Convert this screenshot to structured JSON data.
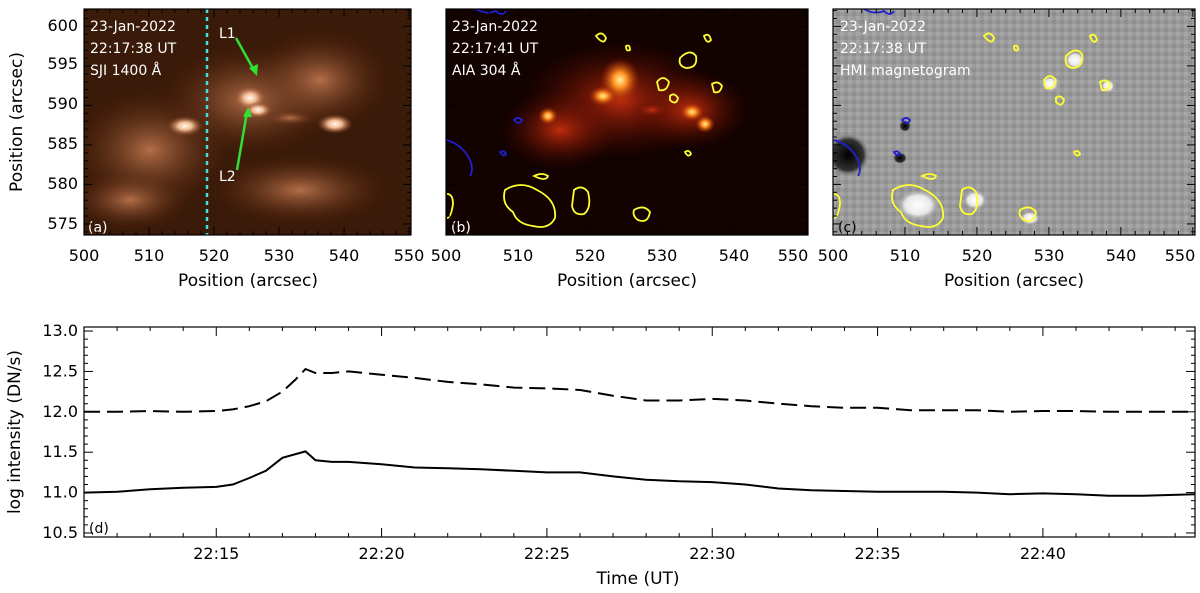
{
  "colors": {
    "iris_dark": "#2a1206",
    "iris_mid": "#8a4020",
    "iris_bright": "#fff4e8",
    "aia_dark": "#100000",
    "aia_mid": "#a02000",
    "aia_bright": "#ffe070",
    "hmi_bg": "#9a9a9a",
    "contour_pos": "#ffff30",
    "contour_neg": "#2020d0",
    "slit": "#40e0e0",
    "arrow": "#30e030",
    "curve": "#000000"
  },
  "panels": [
    {
      "id": "a",
      "label": "(a)",
      "date": "23-Jan-2022",
      "time": "22:17:38 UT",
      "instrument": "SJI 1400 Å",
      "arrow_labels": [
        "L1",
        "L2"
      ],
      "xlabel": "Position (arcsec)",
      "ylabel": "Position (arcsec)",
      "xticks": [
        "500",
        "510",
        "520",
        "530",
        "540",
        "550"
      ],
      "yticks": [
        "575",
        "580",
        "585",
        "590",
        "595",
        "600"
      ]
    },
    {
      "id": "b",
      "label": "(b)",
      "date": "23-Jan-2022",
      "time": "22:17:41 UT",
      "instrument": "AIA 304 Å",
      "xlabel": "Position (arcsec)",
      "xticks": [
        "500",
        "510",
        "520",
        "530",
        "540",
        "550"
      ]
    },
    {
      "id": "c",
      "label": "(c)",
      "date": "23-Jan-2022",
      "time": "22:17:38 UT",
      "instrument": "HMI magnetogram",
      "xlabel": "Position (arcsec)",
      "xticks": [
        "500",
        "510",
        "520",
        "530",
        "540",
        "550"
      ]
    }
  ],
  "chart_data": {
    "type": "line",
    "label": "(d)",
    "xlabel": "Time (UT)",
    "ylabel": "log intensity (DN/s)",
    "xticks": [
      "22:15",
      "22:20",
      "22:25",
      "22:30",
      "22:35",
      "22:40"
    ],
    "yticks": [
      "10.5",
      "11.0",
      "11.5",
      "12.0",
      "12.5",
      "13.0"
    ],
    "xlim_minutes": [
      11.0,
      44.6
    ],
    "ylim": [
      10.45,
      13.05
    ],
    "series": [
      {
        "style": "dashed",
        "x": [
          11.0,
          12.0,
          13.0,
          14.0,
          15.0,
          15.5,
          16.0,
          16.5,
          17.0,
          17.4,
          17.7,
          18.0,
          18.5,
          19.0,
          20.0,
          21.0,
          22.0,
          23.0,
          24.0,
          25.0,
          26.0,
          27.0,
          28.0,
          29.0,
          30.0,
          31.0,
          32.0,
          33.0,
          34.0,
          35.0,
          36.0,
          37.0,
          38.0,
          39.0,
          40.0,
          41.0,
          42.0,
          43.0,
          44.6
        ],
        "y": [
          12.0,
          12.0,
          12.01,
          12.0,
          12.01,
          12.03,
          12.07,
          12.13,
          12.25,
          12.4,
          12.53,
          12.48,
          12.48,
          12.5,
          12.46,
          12.42,
          12.37,
          12.34,
          12.3,
          12.29,
          12.27,
          12.2,
          12.14,
          12.14,
          12.16,
          12.14,
          12.1,
          12.07,
          12.05,
          12.05,
          12.02,
          12.02,
          12.02,
          12.0,
          12.01,
          12.01,
          12.0,
          12.0,
          12.0
        ]
      },
      {
        "style": "solid",
        "x": [
          11.0,
          12.0,
          13.0,
          14.0,
          15.0,
          15.5,
          16.0,
          16.5,
          17.0,
          17.7,
          18.0,
          18.5,
          19.0,
          20.0,
          21.0,
          22.0,
          23.0,
          24.0,
          25.0,
          26.0,
          27.0,
          28.0,
          29.0,
          30.0,
          31.0,
          32.0,
          33.0,
          34.0,
          35.0,
          36.0,
          37.0,
          38.0,
          39.0,
          40.0,
          41.0,
          42.0,
          43.0,
          44.6
        ],
        "y": [
          11.0,
          11.01,
          11.04,
          11.06,
          11.07,
          11.1,
          11.18,
          11.27,
          11.43,
          11.51,
          11.4,
          11.38,
          11.38,
          11.35,
          11.31,
          11.3,
          11.29,
          11.27,
          11.25,
          11.25,
          11.2,
          11.16,
          11.14,
          11.13,
          11.1,
          11.05,
          11.03,
          11.02,
          11.01,
          11.01,
          11.01,
          11.0,
          10.98,
          10.99,
          10.98,
          10.96,
          10.96,
          10.98
        ]
      }
    ]
  }
}
